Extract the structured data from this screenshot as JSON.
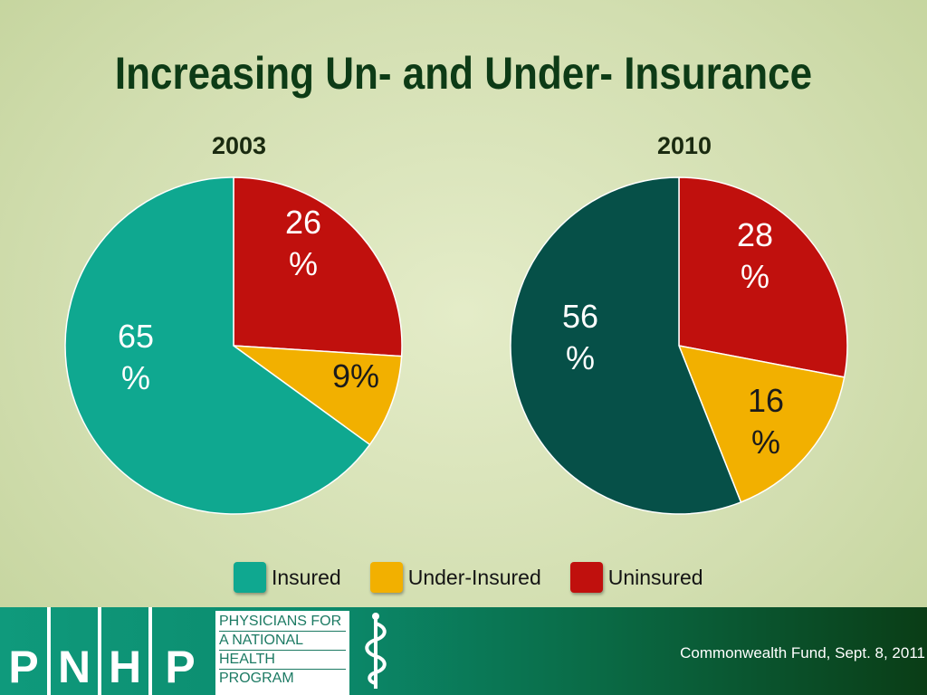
{
  "title": "Increasing Un- and Under- Insurance",
  "chart_data": [
    {
      "type": "pie",
      "title": "2003",
      "categories": [
        "Uninsured",
        "Under-Insured",
        "Insured"
      ],
      "values": [
        26,
        9,
        65
      ],
      "labels": [
        "26\n%",
        "9%",
        "65\n%"
      ],
      "colors": [
        "#c0100d",
        "#f2b000",
        "#0fa890"
      ]
    },
    {
      "type": "pie",
      "title": "2010",
      "categories": [
        "Uninsured",
        "Under-Insured",
        "Insured"
      ],
      "values": [
        28,
        16,
        56
      ],
      "labels": [
        "28\n%",
        "16\n%",
        "56\n%"
      ],
      "colors": [
        "#c0100d",
        "#f2b000",
        "#065048"
      ]
    }
  ],
  "legend": [
    {
      "label": "Insured",
      "color": "#0fa890"
    },
    {
      "label": "Under-Insured",
      "color": "#f2b000"
    },
    {
      "label": "Uninsured",
      "color": "#c0100d"
    }
  ],
  "footer": {
    "logo_letters": [
      "P",
      "N",
      "H",
      "P"
    ],
    "org_lines": [
      "PHYSICIANS FOR",
      "A NATIONAL",
      "HEALTH",
      "PROGRAM"
    ],
    "source": "Commonwealth Fund, Sept. 8, 2011"
  }
}
